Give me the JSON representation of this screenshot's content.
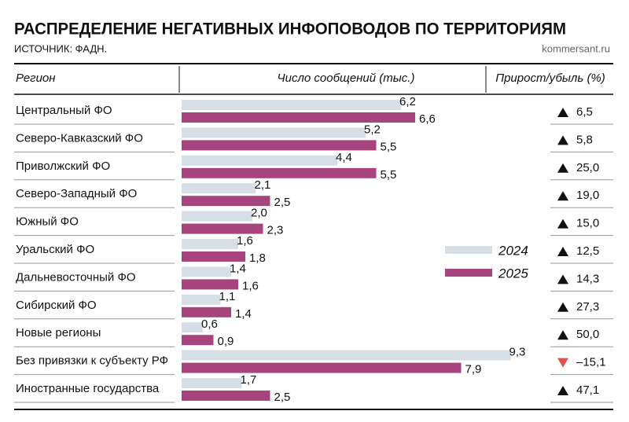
{
  "chart_data": {
    "type": "bar",
    "orientation": "horizontal",
    "title": "РАСПРЕДЕЛЕНИЕ НЕГАТИВНЫХ ИНФОПОВОДОВ ПО ТЕРРИТОРИЯМ",
    "subtitle": "ИСТОЧНИК: ФАДН.",
    "source": "kommersant.ru",
    "headers": [
      "Регион",
      "Число сообщений (тыс.)",
      "Прирост/убыль (%)"
    ],
    "categories": [
      "Центральный ФО",
      "Северо-Кавказский ФО",
      "Приволжский ФО",
      "Северо-Западный ФО",
      "Южный ФО",
      "Уральский ФО",
      "Дальневосточный ФО",
      "Сибирский ФО",
      "Новые регионы",
      "Без привязки к субъекту РФ",
      "Иностранные государства"
    ],
    "series": [
      {
        "name": "2024",
        "color": "#d6dee6",
        "values": [
          6.2,
          5.2,
          4.4,
          2.1,
          2.0,
          1.6,
          1.4,
          1.1,
          0.6,
          9.3,
          1.7
        ],
        "value_labels": [
          "6,2",
          "5,2",
          "4,4",
          "2,1",
          "2,0",
          "1,6",
          "1,4",
          "1,1",
          "0,6",
          "9,3",
          "1,7"
        ]
      },
      {
        "name": "2025",
        "color": "#a8447d",
        "values": [
          6.6,
          5.5,
          5.5,
          2.5,
          2.3,
          1.8,
          1.6,
          1.4,
          0.9,
          7.9,
          2.5
        ],
        "value_labels": [
          "6,6",
          "5,5",
          "5,5",
          "2,5",
          "2,3",
          "1,8",
          "1,6",
          "1,4",
          "0,9",
          "7,9",
          "2,5"
        ]
      }
    ],
    "change": {
      "values": [
        6.5,
        5.8,
        25.0,
        19.0,
        15.0,
        12.5,
        14.3,
        27.3,
        50.0,
        -15.1,
        47.1
      ],
      "value_labels": [
        "6,5",
        "5,8",
        "25,0",
        "19,0",
        "15,0",
        "12,5",
        "14,3",
        "27,3",
        "50,0",
        "–15,1",
        "47,1"
      ],
      "up_color": "#111111",
      "down_color": "#d9534f"
    }
  }
}
